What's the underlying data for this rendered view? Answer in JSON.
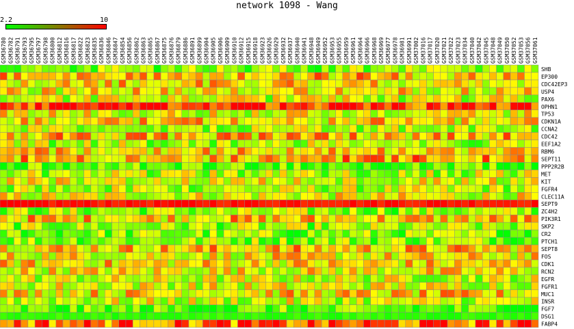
{
  "chart_data": {
    "type": "heatmap",
    "title": "network 1098 - Wang",
    "scale": {
      "min_label": "2.2",
      "max_label": "10",
      "min": 2.2,
      "max": 10,
      "low_color": "#00ff00",
      "high_color": "#ff0000"
    },
    "columns": [
      "GSM36780",
      "GSM36782",
      "GSM36791",
      "GSM36793",
      "GSM36795",
      "GSM36797",
      "GSM36798",
      "GSM36800",
      "GSM36812",
      "GSM36816",
      "GSM36817",
      "GSM36822",
      "GSM36823",
      "GSM36835",
      "GSM36836",
      "GSM36846",
      "GSM36847",
      "GSM36854",
      "GSM36856",
      "GSM36862",
      "GSM36863",
      "GSM36865",
      "GSM36867",
      "GSM36875",
      "GSM36876",
      "GSM36879",
      "GSM36886",
      "GSM36891",
      "GSM36899",
      "GSM36904",
      "GSM36905",
      "GSM36906",
      "GSM36909",
      "GSM36910",
      "GSM36912",
      "GSM36915",
      "GSM36918",
      "GSM36923",
      "GSM36926",
      "GSM36929",
      "GSM36932",
      "GSM36937",
      "GSM36940",
      "GSM36941",
      "GSM36948",
      "GSM36949",
      "GSM36952",
      "GSM36953",
      "GSM36955",
      "GSM36959",
      "GSM36961",
      "GSM36964",
      "GSM36966",
      "GSM36968",
      "GSM36969",
      "GSM36977",
      "GSM36978",
      "GSM36981",
      "GSM36991",
      "GSM37002",
      "GSM37016",
      "GSM37017",
      "GSM37020",
      "GSM37021",
      "GSM37022",
      "GSM37023",
      "GSM37034",
      "GSM37040",
      "GSM37042",
      "GSM37045",
      "GSM37048",
      "GSM37049",
      "GSM37050",
      "GSM37052",
      "GSM37053",
      "GSM37056",
      "GSM37061"
    ],
    "rows": [
      "SHB",
      "EP300",
      "CDC42EP3",
      "USP4",
      "PAX6",
      "OPHN1",
      "TP53",
      "CDKN1A",
      "CCNA2",
      "CDC42",
      "EEF1A2",
      "RBM6",
      "SEPT11",
      "PPP2R2B",
      "MET",
      "KIT",
      "FGFR4",
      "CLEC11A",
      "SEPT9",
      "ZC4H2",
      "PIK3R1",
      "SKP2",
      "CR2",
      "PTCH1",
      "SEPT8",
      "FOS",
      "CDK1",
      "RCN2",
      "EGFR",
      "FGFR1",
      "MUC1",
      "INSR",
      "FGF7",
      "DSG1",
      "FABP4"
    ],
    "row_levels": [
      0.25,
      0.6,
      0.55,
      0.5,
      0.4,
      0.9,
      0.45,
      0.55,
      0.35,
      0.6,
      0.35,
      0.55,
      0.65,
      0.15,
      0.35,
      0.45,
      0.35,
      0.45,
      0.97,
      0.3,
      0.6,
      0.3,
      0.25,
      0.3,
      0.6,
      0.5,
      0.55,
      0.5,
      0.4,
      0.45,
      0.55,
      0.4,
      0.15,
      0.1,
      0.8
    ],
    "grid": true
  }
}
